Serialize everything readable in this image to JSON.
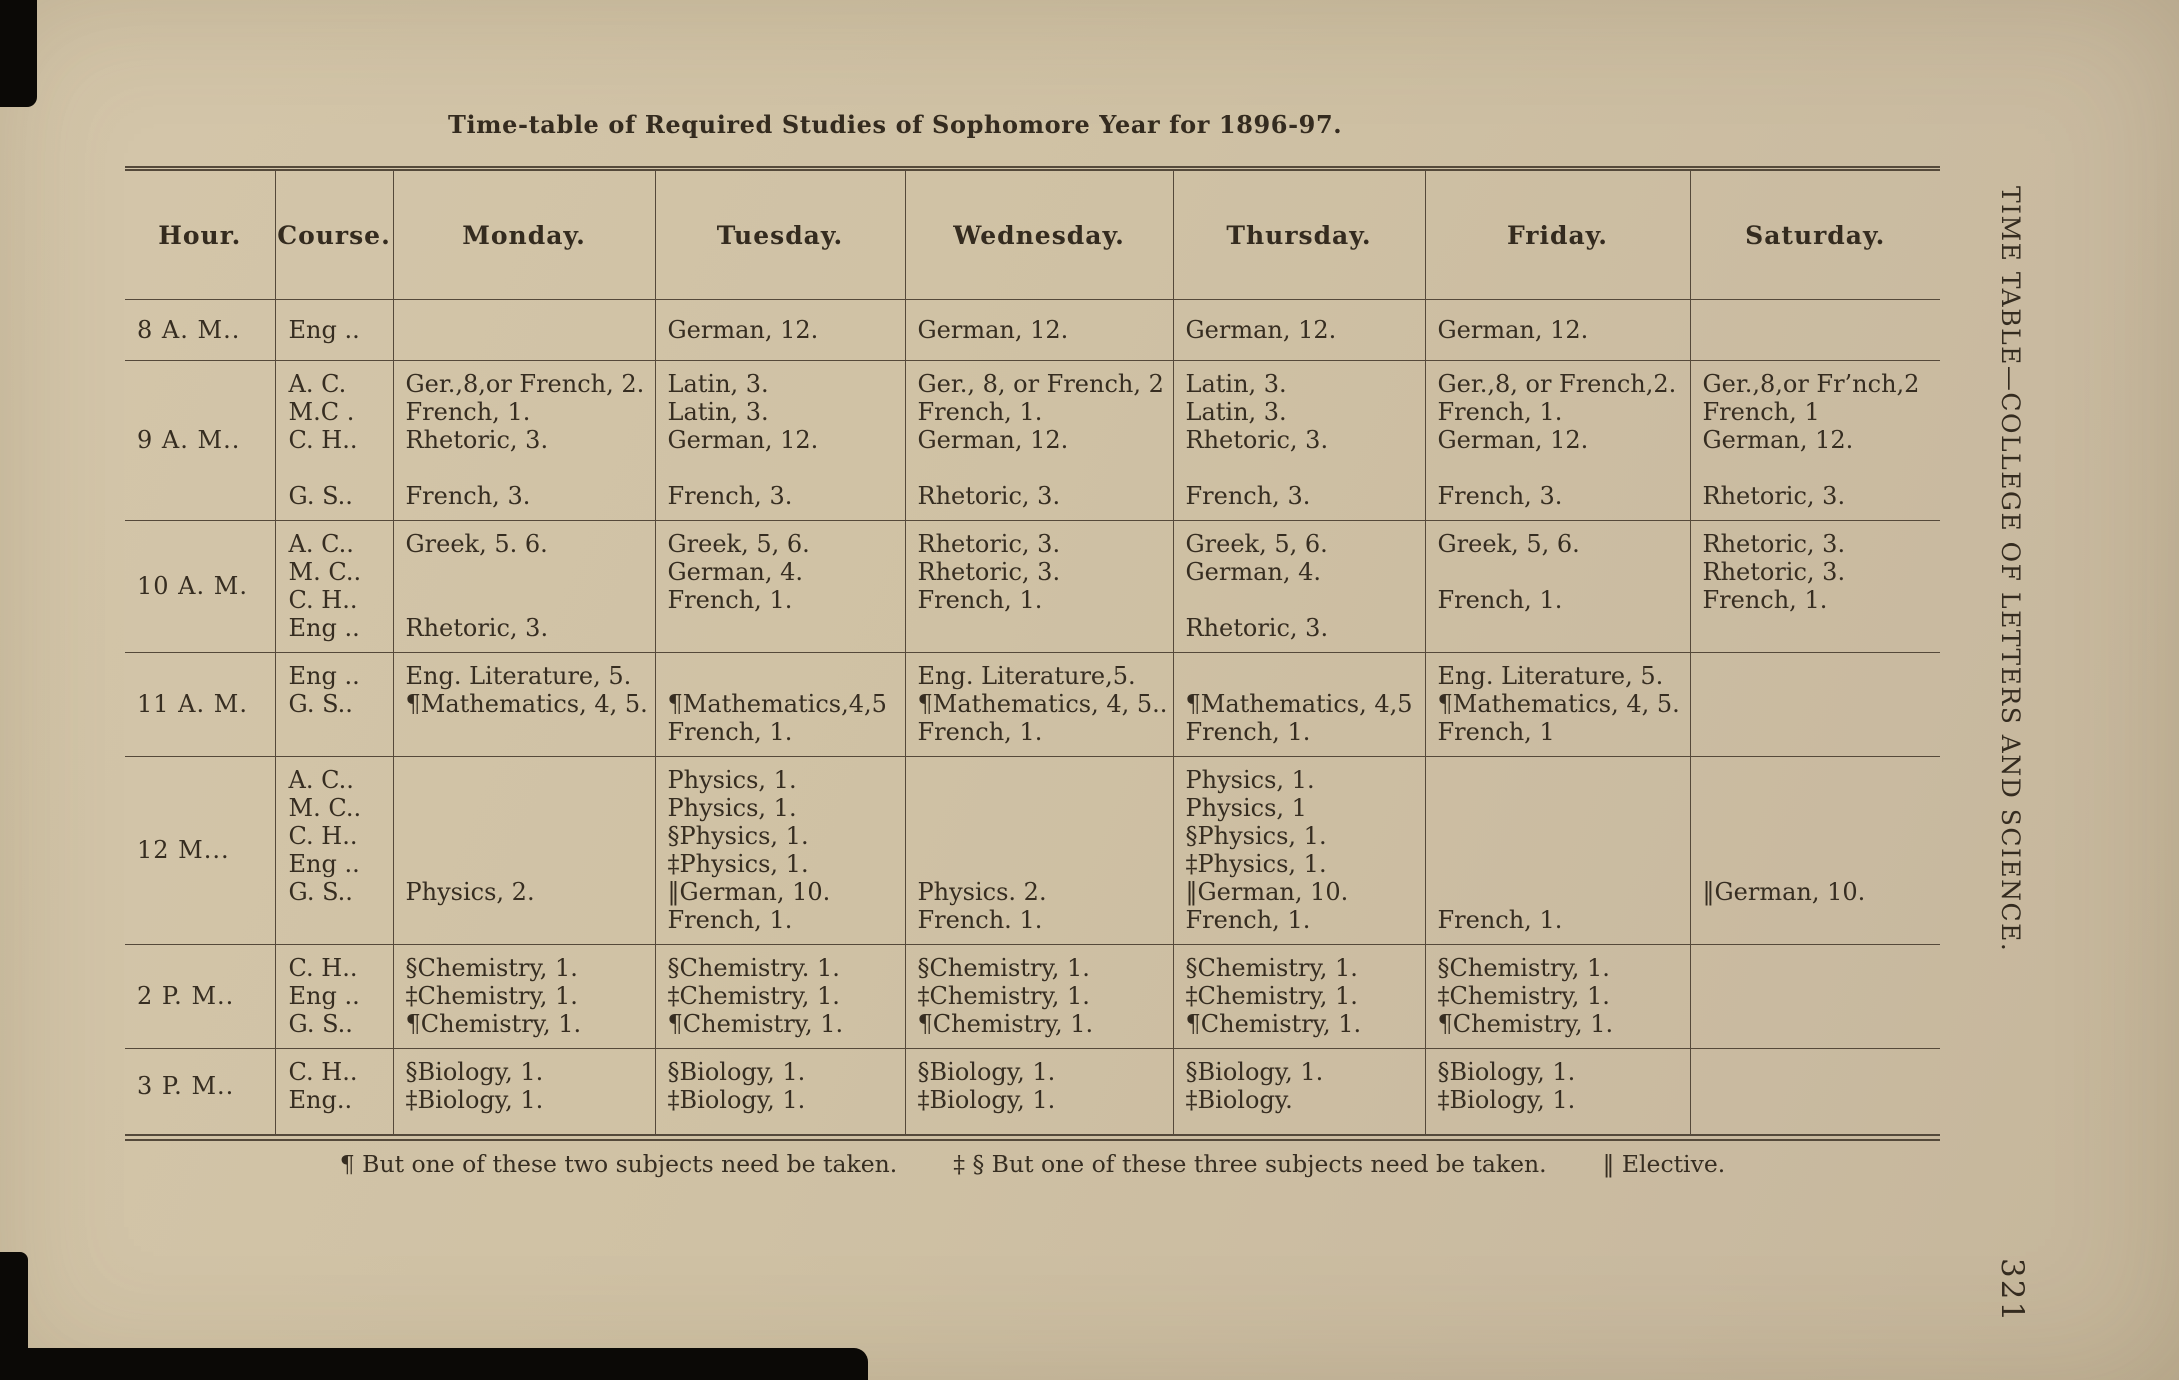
{
  "page": {
    "title": "Time-table of Required Studies of Sophomore Year for 1896-97.",
    "margin_caption": "TIME TABLE—COLLEGE OF LETTERS AND SCIENCE.",
    "page_number": "321"
  },
  "table": {
    "headers": [
      "Hour.",
      "Course.",
      "Monday.",
      "Tuesday.",
      "Wednesday.",
      "Thursday.",
      "Friday.",
      "Saturday."
    ],
    "rows": [
      {
        "hour": "8 A. M..",
        "courses": [
          "Eng .."
        ],
        "days": {
          "monday": [
            ""
          ],
          "tuesday": [
            "German, 12."
          ],
          "wednesday": [
            "German, 12."
          ],
          "thursday": [
            "German, 12."
          ],
          "friday": [
            "German, 12."
          ],
          "saturday": [
            ""
          ]
        }
      },
      {
        "hour": "9 A. M..",
        "courses": [
          "A. C.",
          "M.C .",
          "C. H..",
          "",
          "G. S.."
        ],
        "days": {
          "monday": [
            "Ger.,8,or French, 2.",
            "French, 1.",
            "Rhetoric, 3.",
            "",
            "French, 3."
          ],
          "tuesday": [
            "Latin, 3.",
            "Latin, 3.",
            "German, 12.",
            "",
            "French, 3."
          ],
          "wednesday": [
            "Ger., 8, or French, 2",
            "French, 1.",
            "German, 12.",
            "",
            "Rhetoric, 3."
          ],
          "thursday": [
            "Latin, 3.",
            "Latin, 3.",
            "Rhetoric, 3.",
            "",
            "French, 3."
          ],
          "friday": [
            "Ger.,8, or French,2.",
            "French, 1.",
            "German, 12.",
            "",
            "French, 3."
          ],
          "saturday": [
            "Ger.,8,or Fr’nch,2",
            "French, 1",
            "German, 12.",
            "",
            "Rhetoric, 3."
          ]
        }
      },
      {
        "hour": "10 A. M.",
        "courses": [
          "A. C..",
          "M. C..",
          "C. H..",
          "Eng .."
        ],
        "days": {
          "monday": [
            "Greek, 5. 6.",
            "",
            "",
            "Rhetoric, 3."
          ],
          "tuesday": [
            "Greek, 5, 6.",
            "German, 4.",
            "French, 1.",
            ""
          ],
          "wednesday": [
            "Rhetoric, 3.",
            "Rhetoric, 3.",
            "French, 1.",
            ""
          ],
          "thursday": [
            "Greek, 5, 6.",
            "German, 4.",
            "",
            "Rhetoric, 3."
          ],
          "friday": [
            "Greek, 5, 6.",
            "",
            "French, 1.",
            ""
          ],
          "saturday": [
            "Rhetoric, 3.",
            "Rhetoric, 3.",
            "French, 1.",
            ""
          ]
        }
      },
      {
        "hour": "11 A. M.",
        "courses": [
          "Eng ..",
          "G. S..",
          ""
        ],
        "days": {
          "monday": [
            "Eng. Literature, 5.",
            "¶Mathematics, 4, 5.",
            ""
          ],
          "tuesday": [
            "",
            "¶Mathematics,4,5",
            "French, 1."
          ],
          "wednesday": [
            "Eng. Literature,5.",
            "¶Mathematics, 4, 5..",
            "French, 1."
          ],
          "thursday": [
            "",
            "¶Mathematics, 4,5",
            "French, 1."
          ],
          "friday": [
            "Eng. Literature, 5.",
            "¶Mathematics, 4, 5.",
            "French, 1"
          ],
          "saturday": [
            "",
            "",
            ""
          ]
        }
      },
      {
        "hour": "12 M...",
        "courses": [
          "A. C..",
          "M. C..",
          "C. H..",
          "Eng ..",
          "G. S..",
          ""
        ],
        "days": {
          "monday": [
            "",
            "",
            "",
            "",
            "Physics, 2.",
            ""
          ],
          "tuesday": [
            "Physics, 1.",
            "Physics, 1.",
            "§Physics, 1.",
            "‡Physics, 1.",
            "‖German, 10.",
            "French, 1."
          ],
          "wednesday": [
            "",
            "",
            "",
            "",
            "Physics. 2.",
            "French. 1."
          ],
          "thursday": [
            "Physics, 1.",
            "Physics, 1",
            "§Physics, 1.",
            "‡Physics, 1.",
            "‖German, 10.",
            "French, 1."
          ],
          "friday": [
            "",
            "",
            "",
            "",
            "",
            "French, 1."
          ],
          "saturday": [
            "",
            "",
            "",
            "",
            "‖German, 10.",
            ""
          ]
        }
      },
      {
        "hour": "2 P. M..",
        "courses": [
          "C. H..",
          "Eng ..",
          "G. S.."
        ],
        "days": {
          "monday": [
            "§Chemistry, 1.",
            "‡Chemistry, 1.",
            "¶Chemistry, 1."
          ],
          "tuesday": [
            "§Chemistry. 1.",
            "‡Chemistry, 1.",
            "¶Chemistry, 1."
          ],
          "wednesday": [
            "§Chemistry, 1.",
            "‡Chemistry, 1.",
            "¶Chemistry, 1."
          ],
          "thursday": [
            "§Chemistry, 1.",
            "‡Chemistry, 1.",
            "¶Chemistry, 1."
          ],
          "friday": [
            "§Chemistry, 1.",
            "‡Chemistry, 1.",
            "¶Chemistry, 1."
          ],
          "saturday": [
            "",
            "",
            ""
          ]
        }
      },
      {
        "hour": "3 P. M..",
        "courses": [
          "C. H..",
          "Eng.."
        ],
        "days": {
          "monday": [
            "§Biology, 1.",
            "‡Biology, 1."
          ],
          "tuesday": [
            "§Biology, 1.",
            "‡Biology, 1."
          ],
          "wednesday": [
            "§Biology, 1.",
            "‡Biology, 1."
          ],
          "thursday": [
            "§Biology, 1.",
            "‡Biology."
          ],
          "friday": [
            "§Biology, 1.",
            "‡Biology, 1."
          ],
          "saturday": [
            "",
            ""
          ]
        }
      }
    ]
  },
  "footnotes": [
    "¶ But one of these two subjects need be taken.",
    "‡ § But one of these three subjects need be taken.",
    "‖ Elective."
  ]
}
